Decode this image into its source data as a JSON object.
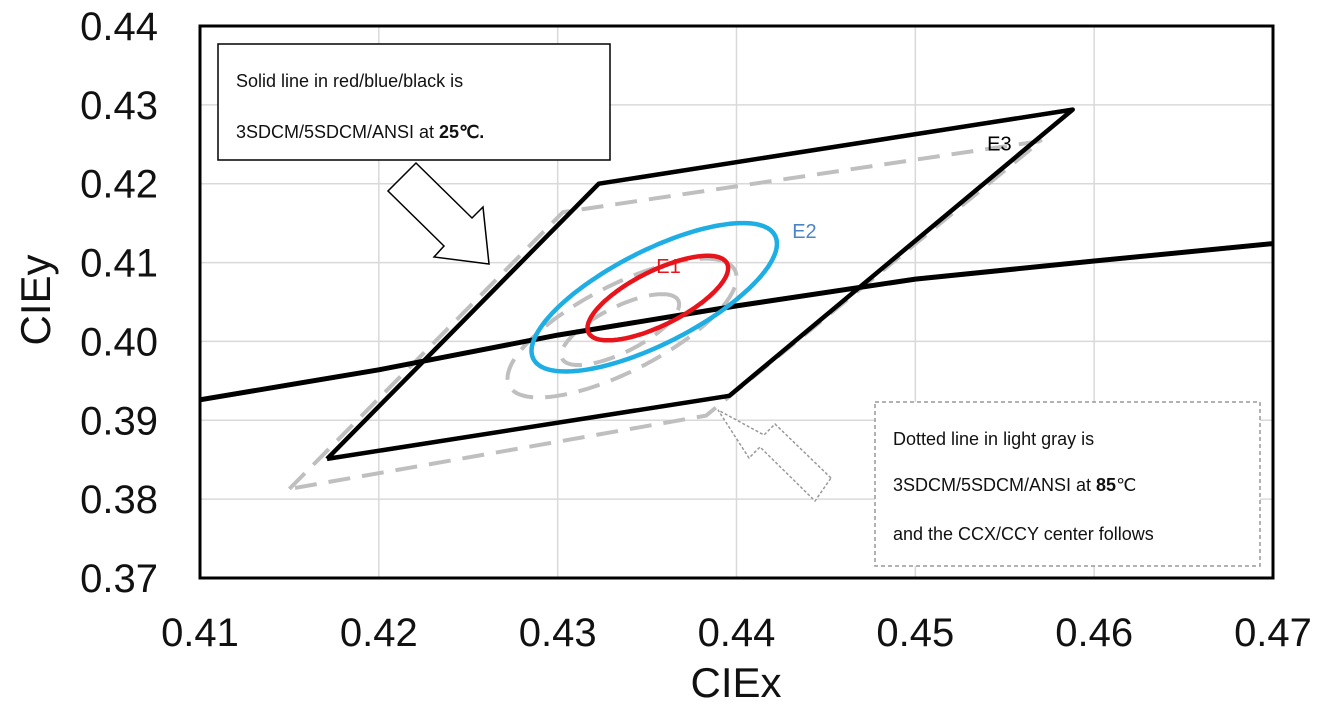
{
  "chart_data": {
    "type": "line",
    "xlabel": "CIEx",
    "ylabel": "CIEy",
    "xlim": [
      0.41,
      0.47
    ],
    "ylim": [
      0.37,
      0.44
    ],
    "xticks": [
      "0.41",
      "0.42",
      "0.43",
      "0.44",
      "0.45",
      "0.46",
      "0.47"
    ],
    "yticks": [
      "0.37",
      "0.38",
      "0.39",
      "0.40",
      "0.41",
      "0.42",
      "0.43",
      "0.44"
    ],
    "grid": true,
    "series": [
      {
        "name": "E1",
        "shape": "ellipse",
        "style": "solid",
        "color": "#e8141b",
        "center": [
          0.4356,
          0.4055
        ],
        "semi_axes": [
          0.0062,
          0.0024
        ],
        "rotation_deg": 57
      },
      {
        "name": "E2",
        "shape": "ellipse",
        "style": "solid",
        "color": "#1eaee3",
        "center": [
          0.4354,
          0.4056
        ],
        "semi_axes": [
          0.0109,
          0.0041
        ],
        "rotation_deg": 57
      },
      {
        "name": "E3",
        "shape": "polygon",
        "style": "solid",
        "color": "#000000",
        "points": [
          [
            0.4171,
            0.3851
          ],
          [
            0.4323,
            0.42
          ],
          [
            0.4588,
            0.4294
          ],
          [
            0.4396,
            0.3931
          ]
        ]
      },
      {
        "name": "",
        "shape": "polyline",
        "style": "solid",
        "color": "#000000",
        "points": [
          [
            0.41,
            0.3926
          ],
          [
            0.42,
            0.3964
          ],
          [
            0.43,
            0.4008
          ],
          [
            0.44,
            0.4045
          ],
          [
            0.45,
            0.4079
          ],
          [
            0.46,
            0.4102
          ],
          [
            0.47,
            0.4124
          ]
        ]
      },
      {
        "name": "",
        "shape": "ellipse",
        "style": "dashed",
        "color": "#bfbfbf",
        "center": [
          0.4335,
          0.4015
        ],
        "semi_axes": [
          0.0052,
          0.002
        ],
        "rotation_deg": 57
      },
      {
        "name": "",
        "shape": "ellipse",
        "style": "dashed",
        "color": "#bfbfbf",
        "center": [
          0.4336,
          0.4017
        ],
        "semi_axes": [
          0.0102,
          0.0038
        ],
        "rotation_deg": 57
      },
      {
        "name": "",
        "shape": "polygon",
        "style": "dashed",
        "color": "#bfbfbf",
        "points": [
          [
            0.415,
            0.3813
          ],
          [
            0.4303,
            0.4164
          ],
          [
            0.457,
            0.4254
          ],
          [
            0.4383,
            0.3906
          ]
        ]
      }
    ],
    "annotations": {
      "box1": {
        "line1": "Solid line in red/blue/black is",
        "line2_prefix": "3SDCM/5SDCM/ANSI at ",
        "line2_bold": "25",
        "line2_suffix": "℃."
      },
      "box2": {
        "line1": "Dotted line in light gray is",
        "line2_prefix": "3SDCM/5SDCM/ANSI at ",
        "line2_bold": "85",
        "line2_suffix": "℃",
        "line3": "and the CCX/CCY center follows"
      }
    }
  }
}
